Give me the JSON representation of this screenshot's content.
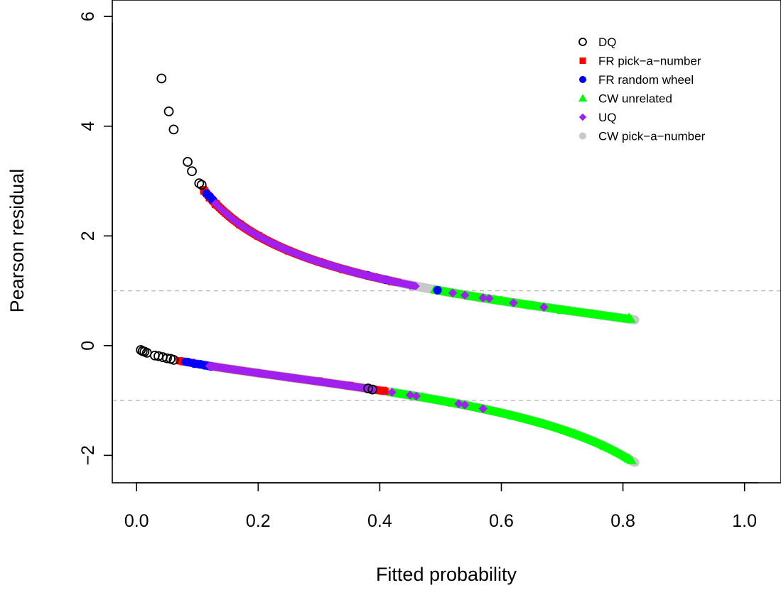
{
  "chart_data": {
    "type": "scatter",
    "title": "",
    "xlabel": "Fitted probability",
    "ylabel": "Pearson residual",
    "xlim": [
      -0.04,
      1.06
    ],
    "ylim": [
      -2.5,
      6.3
    ],
    "xticks": [
      0.0,
      0.2,
      0.4,
      0.6,
      0.8,
      1.0
    ],
    "xtick_labels": [
      "0.0",
      "0.2",
      "0.4",
      "0.6",
      "0.8",
      "1.0"
    ],
    "yticks": [
      -2,
      0,
      2,
      4,
      6
    ],
    "ytick_labels": [
      "−2",
      "0",
      "2",
      "4",
      "6"
    ],
    "reference_lines": [
      1,
      -1
    ],
    "legend_position": "top-right",
    "grid": false,
    "series": [
      {
        "name": "DQ",
        "marker": "open-circle",
        "color": "#000000",
        "upper_points": [
          [
            0.041,
            4.87
          ],
          [
            0.053,
            4.27
          ],
          [
            0.061,
            3.94
          ],
          [
            0.084,
            3.35
          ],
          [
            0.091,
            3.18
          ],
          [
            0.103,
            2.96
          ],
          [
            0.107,
            2.93
          ]
        ],
        "lower_points": [
          [
            0.007,
            -0.08
          ],
          [
            0.01,
            -0.1
          ],
          [
            0.013,
            -0.11
          ],
          [
            0.017,
            -0.13
          ],
          [
            0.03,
            -0.18
          ],
          [
            0.036,
            -0.19
          ],
          [
            0.043,
            -0.21
          ],
          [
            0.05,
            -0.23
          ],
          [
            0.056,
            -0.24
          ],
          [
            0.061,
            -0.26
          ],
          [
            0.381,
            -0.78
          ],
          [
            0.388,
            -0.8
          ]
        ],
        "upper_range": null,
        "lower_range": null
      },
      {
        "name": "FR pick−a−number",
        "marker": "filled-square",
        "color": "#ff0000",
        "upper_points": [
          [
            0.111,
            2.82
          ],
          [
            0.12,
            2.7
          ],
          [
            0.13,
            2.58
          ],
          [
            0.17,
            2.21
          ],
          [
            0.2,
            2.0
          ],
          [
            0.25,
            1.73
          ],
          [
            0.3,
            1.53
          ],
          [
            0.34,
            1.39
          ],
          [
            0.39,
            1.25
          ],
          [
            0.42,
            1.17
          ]
        ],
        "lower_points": [
          [
            0.078,
            -0.29
          ],
          [
            0.09,
            -0.31
          ],
          [
            0.3,
            -0.65
          ],
          [
            0.35,
            -0.73
          ],
          [
            0.405,
            -0.82
          ]
        ],
        "upper_range": [
          0.11,
          0.43
        ],
        "lower_range": [
          0.07,
          0.41
        ]
      },
      {
        "name": "FR random wheel",
        "marker": "filled-circle",
        "color": "#0000ff",
        "upper_points": [
          [
            0.115,
            2.77
          ],
          [
            0.12,
            2.72
          ],
          [
            0.125,
            2.66
          ],
          [
            0.38,
            1.28
          ],
          [
            0.41,
            1.2
          ],
          [
            0.495,
            1.01
          ]
        ],
        "lower_points": [
          [
            0.085,
            -0.3
          ],
          [
            0.095,
            -0.33
          ],
          [
            0.105,
            -0.34
          ],
          [
            0.112,
            -0.36
          ],
          [
            0.118,
            -0.37
          ],
          [
            0.122,
            -0.38
          ]
        ],
        "upper_range": null,
        "lower_range": [
          0.08,
          0.125
        ]
      },
      {
        "name": "CW unrelated",
        "marker": "filled-triangle",
        "color": "#00ff00",
        "upper_points": [
          [
            0.5,
            1.0
          ],
          [
            0.55,
            0.9
          ],
          [
            0.6,
            0.82
          ],
          [
            0.65,
            0.73
          ],
          [
            0.7,
            0.65
          ],
          [
            0.75,
            0.58
          ],
          [
            0.81,
            0.51
          ]
        ],
        "lower_points": [
          [
            0.42,
            -0.85
          ],
          [
            0.47,
            -0.94
          ],
          [
            0.52,
            -1.04
          ],
          [
            0.57,
            -1.15
          ],
          [
            0.62,
            -1.28
          ],
          [
            0.67,
            -1.42
          ],
          [
            0.72,
            -1.6
          ],
          [
            0.77,
            -1.83
          ],
          [
            0.81,
            -2.06
          ]
        ],
        "upper_range": [
          0.49,
          0.815
        ],
        "lower_range": [
          0.42,
          0.815
        ]
      },
      {
        "name": "UQ",
        "marker": "filled-diamond",
        "color": "#a020f0",
        "upper_points": [
          [
            0.13,
            2.59
          ],
          [
            0.15,
            2.38
          ],
          [
            0.175,
            2.17
          ],
          [
            0.2,
            2.0
          ],
          [
            0.24,
            1.78
          ],
          [
            0.28,
            1.6
          ],
          [
            0.32,
            1.46
          ],
          [
            0.36,
            1.33
          ],
          [
            0.4,
            1.22
          ],
          [
            0.45,
            1.1
          ],
          [
            0.52,
            0.96
          ],
          [
            0.54,
            0.92
          ],
          [
            0.57,
            0.87
          ],
          [
            0.58,
            0.86
          ],
          [
            0.62,
            0.78
          ],
          [
            0.67,
            0.7
          ]
        ],
        "lower_points": [
          [
            0.12,
            -0.37
          ],
          [
            0.16,
            -0.44
          ],
          [
            0.2,
            -0.5
          ],
          [
            0.25,
            -0.58
          ],
          [
            0.3,
            -0.65
          ],
          [
            0.35,
            -0.73
          ],
          [
            0.38,
            -0.78
          ],
          [
            0.42,
            -0.85
          ],
          [
            0.45,
            -0.9
          ],
          [
            0.46,
            -0.92
          ],
          [
            0.53,
            -1.06
          ],
          [
            0.54,
            -1.08
          ],
          [
            0.57,
            -1.15
          ]
        ],
        "upper_range": [
          0.13,
          0.46
        ],
        "lower_range": [
          0.12,
          0.39
        ]
      },
      {
        "name": "CW pick−a−number",
        "marker": "filled-circle",
        "color": "#c8c8c8",
        "upper_points": [
          [
            0.2,
            2.0
          ],
          [
            0.3,
            1.53
          ],
          [
            0.4,
            1.22
          ],
          [
            0.5,
            1.0
          ],
          [
            0.6,
            0.82
          ],
          [
            0.7,
            0.65
          ],
          [
            0.8,
            0.5
          ],
          [
            0.82,
            0.47
          ]
        ],
        "lower_points": [
          [
            0.1,
            -0.33
          ],
          [
            0.2,
            -0.5
          ],
          [
            0.3,
            -0.65
          ],
          [
            0.4,
            -0.82
          ],
          [
            0.6,
            -1.22
          ],
          [
            0.82,
            -2.13
          ]
        ],
        "upper_range": [
          0.17,
          0.82
        ],
        "lower_range": [
          0.1,
          0.82
        ]
      }
    ]
  }
}
